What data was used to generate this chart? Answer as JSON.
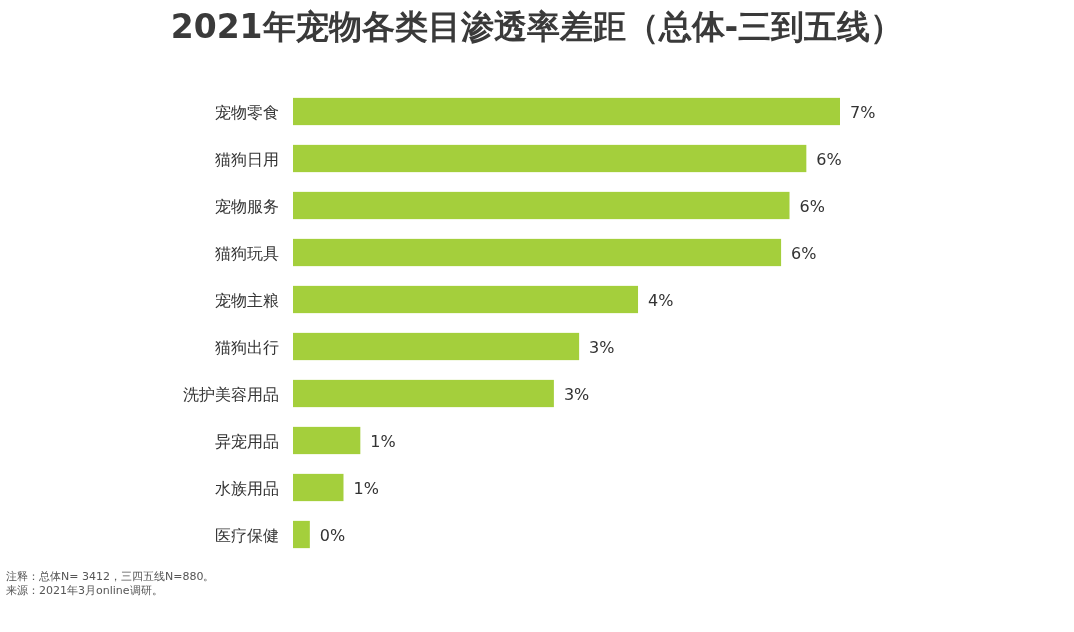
{
  "chart_data": {
    "type": "bar",
    "orientation": "horizontal",
    "title": "2021年宠物各类目渗透率差距（总体-三到五线）",
    "categories": [
      "宠物零食",
      "猫狗日用",
      "宠物服务",
      "猫狗玩具",
      "宠物主粮",
      "猫狗出行",
      "洗护美容用品",
      "异宠用品",
      "水族用品",
      "医疗保健"
    ],
    "values": [
      6.5,
      6.1,
      5.9,
      5.8,
      4.1,
      3.4,
      3.1,
      0.8,
      0.6,
      0.2
    ],
    "value_labels": [
      "7%",
      "6%",
      "6%",
      "6%",
      "4%",
      "3%",
      "3%",
      "1%",
      "1%",
      "0%"
    ],
    "color": "#a4cf3c",
    "annotations": [
      "注释：总体N= 3412，三四五线N=880。",
      "来源：2021年3月online调研。"
    ]
  }
}
